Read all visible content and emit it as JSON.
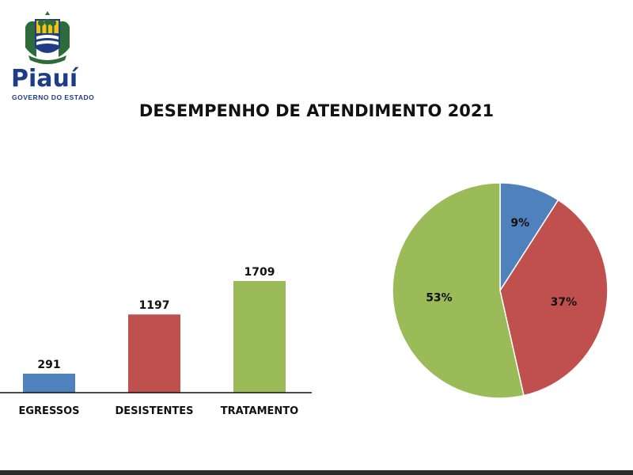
{
  "header": {
    "logo_word": "Piauí",
    "logo_subtitle": "GOVERNO DO ESTADO",
    "title": "DESEMPENHO DE ATENDIMENTO 2021"
  },
  "chart_data": [
    {
      "type": "bar",
      "categories": [
        "EGRESSOS",
        "DESISTENTES",
        "TRATAMENTO"
      ],
      "values": [
        291,
        1197,
        1709
      ],
      "data_labels": [
        "291",
        "1197",
        "1709"
      ],
      "colors": [
        "#4f81bd",
        "#c0504d",
        "#9bbb59"
      ],
      "ylim": [
        0,
        1709
      ],
      "grid": false
    },
    {
      "type": "pie",
      "labels": [
        "9%",
        "37%",
        "53%"
      ],
      "values": [
        9,
        37,
        53
      ],
      "colors": [
        "#4f81bd",
        "#c0504d",
        "#9bbb59"
      ]
    }
  ]
}
